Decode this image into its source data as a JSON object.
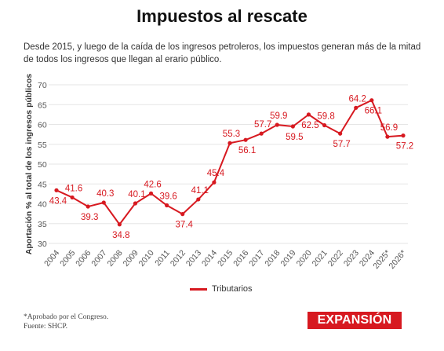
{
  "header": {
    "title": "Impuestos al rescate",
    "subtitle": "Desde 2015, y luego de la caída de los ingresos petroleros, los impuestos generan más de la mitad de todos los ingresos que llegan al erario público."
  },
  "footer": {
    "note": "*Aprobado por el Congreso.",
    "source": "Fuente: SHCP.",
    "logo": "EXPANSIÓN"
  },
  "colors": {
    "series": "#d71920",
    "grid": "#e6e6e6"
  },
  "chart_data": {
    "type": "line",
    "title": "Impuestos al rescate",
    "ylabel": "Aportación % al total de los ingresos públicos",
    "xlabel": "",
    "ylim": [
      30,
      70
    ],
    "yticks": [
      30,
      35,
      40,
      45,
      50,
      55,
      60,
      65,
      70
    ],
    "grid": true,
    "legend_position": "bottom",
    "categories": [
      "2004",
      "2005",
      "2006",
      "2007",
      "2008",
      "2009",
      "2010",
      "2011",
      "2012",
      "2013",
      "2014",
      "2015",
      "2016",
      "2017",
      "2018",
      "2019",
      "2020",
      "2021",
      "2022",
      "2023",
      "2024",
      "2025*",
      "2026*"
    ],
    "series": [
      {
        "name": "Tributarios",
        "values": [
          43.4,
          41.6,
          39.3,
          40.3,
          34.8,
          40.1,
          42.6,
          39.6,
          37.4,
          41.1,
          45.4,
          55.3,
          56.1,
          57.7,
          59.9,
          59.5,
          62.5,
          59.8,
          57.7,
          64.2,
          66.1,
          56.9,
          57.2
        ],
        "labels": [
          "43.4",
          "41.6",
          "39.3",
          "40.3",
          "34.8",
          "40.1",
          "42.6",
          "39.6",
          "37.4",
          "41.1",
          "45.4",
          "55.3",
          "56.1",
          "57.7",
          "59.9",
          "59.5",
          "62.5",
          "59.8",
          "57.7",
          "64.2",
          "66.1",
          "56.9",
          "57.2"
        ]
      }
    ]
  }
}
